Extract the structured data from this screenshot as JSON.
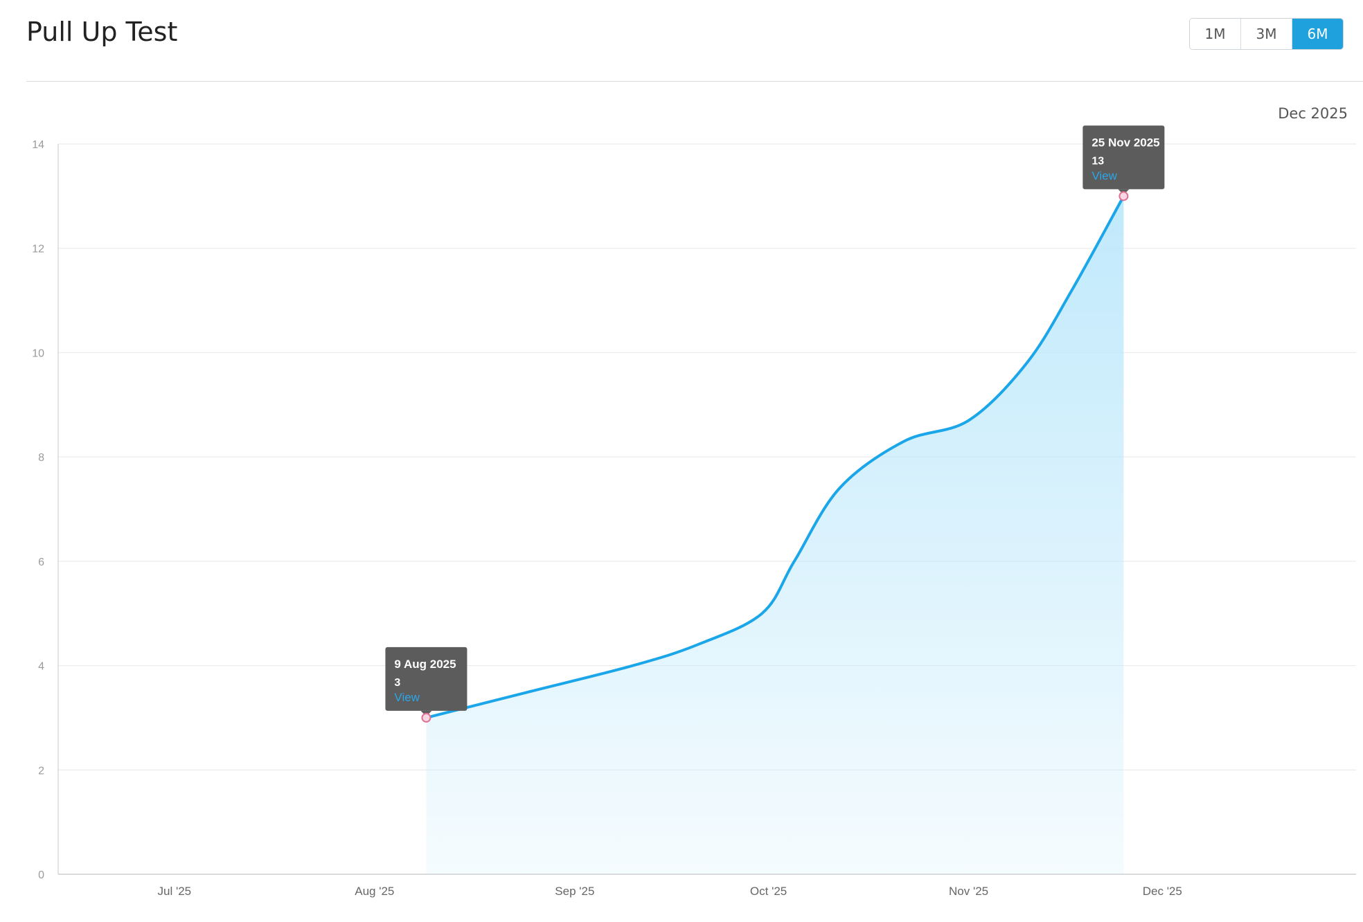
{
  "header": {
    "title": "Pull Up Test",
    "ranges": [
      {
        "label": "1M",
        "active": false
      },
      {
        "label": "3M",
        "active": false
      },
      {
        "label": "6M",
        "active": true
      }
    ],
    "period_label": "Dec 2025"
  },
  "colors": {
    "line": "#1aa6e8",
    "fill": "#bde8fb",
    "tooltip_bg": "#5c5c5c",
    "link": "#2aa7e8",
    "accent": "#1ea1dd"
  },
  "chart_data": {
    "type": "area",
    "ylim": [
      0,
      14
    ],
    "yticks": [
      0,
      2,
      4,
      6,
      8,
      10,
      12,
      14
    ],
    "x_range": [
      "2025-06-13",
      "2025-12-31"
    ],
    "xticks": [
      {
        "date": "2025-07-01",
        "label": "Jul '25"
      },
      {
        "date": "2025-08-01",
        "label": "Aug '25"
      },
      {
        "date": "2025-09-01",
        "label": "Sep '25"
      },
      {
        "date": "2025-10-01",
        "label": "Oct '25"
      },
      {
        "date": "2025-11-01",
        "label": "Nov '25"
      },
      {
        "date": "2025-12-01",
        "label": "Dec '25"
      }
    ],
    "series": [
      {
        "points": [
          {
            "x": "2025-08-09",
            "y": 3
          },
          {
            "x": "2025-08-25",
            "y": 3.5
          },
          {
            "x": "2025-09-10",
            "y": 4.0
          },
          {
            "x": "2025-09-20",
            "y": 4.4
          },
          {
            "x": "2025-09-30",
            "y": 5.0
          },
          {
            "x": "2025-10-05",
            "y": 6.0
          },
          {
            "x": "2025-10-12",
            "y": 7.4
          },
          {
            "x": "2025-10-22",
            "y": 8.3
          },
          {
            "x": "2025-11-01",
            "y": 8.7
          },
          {
            "x": "2025-11-10",
            "y": 9.8
          },
          {
            "x": "2025-11-17",
            "y": 11.2
          },
          {
            "x": "2025-11-25",
            "y": 13
          }
        ]
      }
    ],
    "tooltips": [
      {
        "date_label": "9 Aug 2025",
        "value": "3",
        "link": "View",
        "x": "2025-08-09",
        "y": 3
      },
      {
        "date_label": "25 Nov 2025",
        "value": "13",
        "link": "View",
        "x": "2025-11-25",
        "y": 13
      }
    ],
    "grid": true
  }
}
